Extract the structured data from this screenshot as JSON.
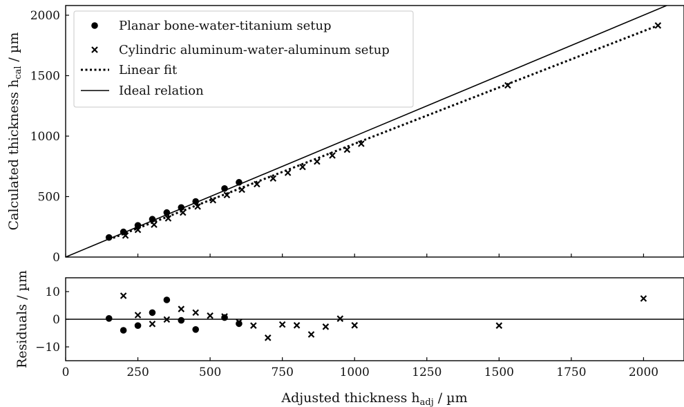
{
  "chart_data": [
    {
      "type": "scatter",
      "panel": "main",
      "title": "",
      "xlabel": "Adjusted thickness",
      "xlabel_sub": "adj",
      "xlabel_unit": " / µm",
      "ylabel": "Calculated thickness h",
      "ylabel_sub": "cal",
      "ylabel_unit": " / µm",
      "xlim": [
        0,
        2140
      ],
      "ylim": [
        0,
        2080
      ],
      "yticks": [
        0,
        500,
        1000,
        1500,
        2000
      ],
      "grid": false,
      "legend_position": "top-left",
      "series": [
        {
          "name": "Planar bone-water-titanium setup",
          "marker": "circle",
          "x": [
            150,
            200,
            250,
            300,
            350,
            400,
            450,
            550,
            600
          ],
          "y": [
            162,
            208,
            262,
            313,
            368,
            410,
            460,
            567,
            618
          ]
        },
        {
          "name": "Cylindric aluminum-water-aluminum setup",
          "marker": "x",
          "x": [
            207,
            250,
            306,
            355,
            406,
            457,
            510,
            558,
            610,
            662,
            718,
            769,
            820,
            870,
            923,
            974,
            1023,
            1530,
            2050
          ],
          "y": [
            178,
            225,
            268,
            320,
            368,
            418,
            470,
            513,
            557,
            603,
            650,
            697,
            745,
            790,
            840,
            888,
            937,
            1420,
            1915
          ]
        },
        {
          "name": "Linear fit",
          "style": "dotted",
          "x": [
            150,
            2050
          ],
          "y": [
            145,
            1915
          ]
        },
        {
          "name": "Ideal relation",
          "style": "solid",
          "x": [
            0,
            2140
          ],
          "y": [
            0,
            2140
          ]
        }
      ]
    },
    {
      "type": "scatter",
      "panel": "residuals",
      "xlabel": "Adjusted thickness",
      "ylabel": "Residuals / µm",
      "xlim": [
        0,
        2140
      ],
      "ylim": [
        -15,
        15
      ],
      "xticks": [
        0,
        250,
        500,
        750,
        1000,
        1250,
        1500,
        1750,
        2000
      ],
      "yticks": [
        -10,
        0,
        10
      ],
      "zero_line": true,
      "series": [
        {
          "marker": "circle",
          "x": [
            150,
            200,
            250,
            300,
            350,
            400,
            450,
            550,
            600
          ],
          "y": [
            0.3,
            -4,
            -2.3,
            2.4,
            7,
            -0.4,
            -3.7,
            0.6,
            -1.6
          ]
        },
        {
          "marker": "x",
          "x": [
            200,
            250,
            300,
            350,
            400,
            450,
            500,
            550,
            600,
            650,
            700,
            750,
            800,
            850,
            900,
            950,
            1000,
            1500,
            2000
          ],
          "y": [
            8.5,
            1.5,
            -1.7,
            -0.1,
            3.7,
            2.4,
            1.3,
            1,
            -1,
            -2.3,
            -6.7,
            -1.9,
            -2.2,
            -5.5,
            -2.7,
            0.2,
            -2.2,
            -2.3,
            7.5
          ]
        }
      ]
    }
  ]
}
